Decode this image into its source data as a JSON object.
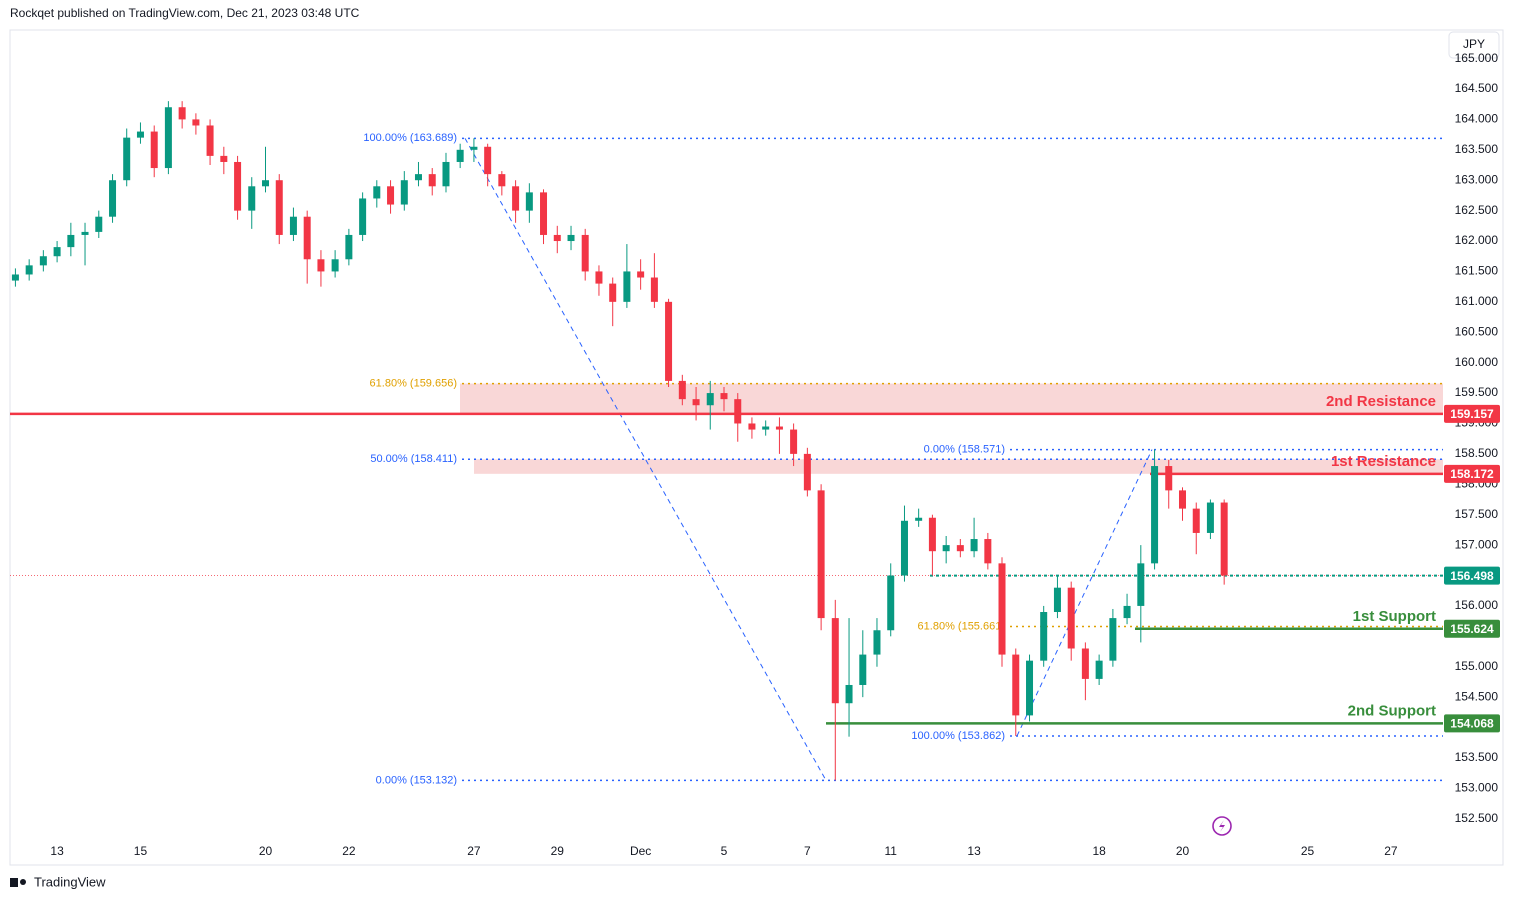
{
  "header": {
    "text": "Rockqet published on TradingView.com, Dec 21, 2023 03:48 UTC",
    "currency": "JPY",
    "brand": "TradingView"
  },
  "chart_data": {
    "type": "candlestick",
    "up_color": "#089981",
    "down_color": "#f23645",
    "x": [
      -1,
      -0.67,
      -0.33,
      0,
      0.33,
      0.67,
      1,
      1.33,
      1.67,
      2,
      2.33,
      2.67,
      3,
      3.33,
      3.67,
      4,
      4.33,
      4.67,
      5,
      5.33,
      5.67,
      6,
      6.33,
      6.67,
      7,
      7.33,
      7.67,
      8,
      8.33,
      8.67,
      9,
      9.33,
      9.67,
      10,
      10.33,
      10.67,
      11,
      11.33,
      11.67,
      12,
      12.33,
      12.67,
      13,
      13.33,
      13.67,
      14,
      14.33,
      14.67,
      15,
      15.33,
      15.67,
      16,
      16.33,
      16.67,
      17,
      17.33,
      17.67,
      18,
      18.33,
      18.67,
      19,
      19.33,
      19.67,
      20,
      20.33,
      20.67,
      21,
      21.33,
      21.67,
      22,
      22.33,
      22.67,
      23,
      23.33,
      23.67,
      24,
      24.33,
      24.67,
      25,
      25.33,
      25.67,
      26,
      26.33,
      26.67,
      27,
      27.33,
      27.67,
      28
    ],
    "open": [
      161.35,
      161.45,
      161.6,
      161.75,
      161.9,
      162.1,
      162.15,
      162.4,
      163.0,
      163.7,
      163.8,
      163.2,
      164.2,
      164.0,
      163.9,
      163.4,
      163.3,
      162.5,
      162.9,
      163.0,
      162.1,
      162.4,
      161.7,
      161.5,
      161.7,
      162.1,
      162.7,
      162.9,
      162.6,
      163.0,
      163.1,
      162.9,
      163.3,
      163.5,
      163.55,
      163.1,
      162.9,
      162.5,
      162.8,
      162.1,
      162.0,
      162.1,
      161.5,
      161.3,
      161.0,
      161.5,
      161.4,
      161.0,
      159.7,
      159.4,
      159.3,
      159.5,
      159.4,
      159.0,
      158.9,
      158.95,
      158.9,
      158.5,
      157.9,
      155.8,
      154.4,
      154.7,
      155.2,
      155.6,
      156.5,
      157.4,
      157.45,
      156.9,
      157.0,
      156.9,
      157.1,
      156.7,
      155.2,
      154.2,
      155.1,
      155.9,
      156.3,
      155.3,
      154.8,
      155.1,
      155.8,
      156.0,
      156.7,
      158.3,
      157.9,
      157.6,
      157.2,
      157.7
    ],
    "high": [
      161.55,
      161.7,
      161.85,
      162.0,
      162.3,
      162.3,
      162.5,
      163.1,
      163.85,
      163.95,
      163.9,
      164.3,
      164.3,
      164.1,
      164.0,
      163.55,
      163.4,
      163.05,
      163.55,
      163.1,
      162.55,
      162.5,
      161.85,
      161.85,
      162.2,
      162.8,
      163.0,
      163.0,
      163.15,
      163.3,
      163.2,
      163.45,
      163.6,
      163.689,
      163.6,
      163.15,
      163.0,
      162.95,
      162.85,
      162.25,
      162.25,
      162.2,
      161.6,
      161.4,
      161.95,
      161.7,
      161.8,
      161.05,
      159.8,
      159.6,
      159.7,
      159.6,
      159.5,
      159.1,
      159.05,
      159.1,
      159.0,
      158.6,
      158.0,
      156.1,
      155.8,
      155.6,
      155.8,
      156.7,
      157.65,
      157.6,
      157.5,
      157.15,
      157.1,
      157.45,
      157.2,
      156.8,
      155.3,
      155.2,
      156.0,
      156.5,
      156.4,
      155.4,
      155.2,
      155.95,
      156.2,
      157.0,
      158.571,
      158.4,
      157.95,
      157.7,
      157.75,
      157.75
    ],
    "low": [
      161.25,
      161.35,
      161.5,
      161.65,
      161.75,
      161.6,
      162.05,
      162.3,
      162.9,
      163.6,
      163.05,
      163.1,
      163.85,
      163.75,
      163.25,
      163.1,
      162.35,
      162.2,
      162.8,
      161.95,
      162.0,
      161.3,
      161.25,
      161.4,
      161.6,
      162.0,
      162.55,
      162.45,
      162.5,
      162.9,
      162.75,
      162.8,
      163.2,
      163.3,
      162.9,
      162.75,
      162.3,
      162.3,
      161.95,
      161.8,
      161.85,
      161.35,
      161.1,
      160.6,
      160.9,
      161.2,
      160.9,
      159.6,
      159.3,
      159.05,
      158.9,
      159.2,
      158.7,
      158.75,
      158.8,
      158.5,
      158.3,
      157.8,
      155.6,
      153.132,
      153.85,
      154.5,
      155.0,
      155.5,
      156.4,
      157.3,
      156.5,
      156.7,
      156.8,
      156.8,
      156.6,
      155.0,
      153.862,
      154.1,
      155.0,
      155.8,
      155.1,
      154.45,
      154.7,
      155.0,
      155.7,
      155.4,
      156.6,
      157.6,
      157.4,
      156.85,
      157.1,
      156.35
    ],
    "close": [
      161.45,
      161.6,
      161.75,
      161.9,
      162.1,
      162.15,
      162.4,
      163.0,
      163.7,
      163.8,
      163.2,
      164.2,
      164.0,
      163.9,
      163.4,
      163.3,
      162.5,
      162.9,
      163.0,
      162.1,
      162.4,
      161.7,
      161.5,
      161.7,
      162.1,
      162.7,
      162.9,
      162.6,
      163.0,
      163.1,
      162.9,
      163.3,
      163.5,
      163.55,
      163.1,
      162.9,
      162.5,
      162.8,
      162.1,
      162.0,
      162.1,
      161.5,
      161.3,
      161.0,
      161.5,
      161.4,
      161.0,
      159.7,
      159.4,
      159.3,
      159.5,
      159.4,
      159.0,
      158.9,
      158.95,
      158.9,
      158.5,
      157.9,
      155.8,
      154.4,
      154.7,
      155.2,
      155.6,
      156.5,
      157.4,
      157.45,
      156.9,
      157.0,
      156.9,
      157.1,
      156.7,
      155.2,
      154.2,
      155.1,
      155.9,
      156.3,
      155.3,
      154.8,
      155.1,
      155.8,
      156.0,
      156.7,
      158.3,
      157.9,
      157.6,
      157.2,
      157.7,
      156.5
    ],
    "xlim": [
      -1.13,
      33.25
    ],
    "ylim": [
      151.74,
      165.47
    ],
    "xticks": [
      {
        "value": 0,
        "label": "13"
      },
      {
        "value": 2,
        "label": "15"
      },
      {
        "value": 5,
        "label": "20"
      },
      {
        "value": 7,
        "label": "22"
      },
      {
        "value": 10,
        "label": "27"
      },
      {
        "value": 12,
        "label": "29"
      },
      {
        "value": 14,
        "label": "Dec"
      },
      {
        "value": 16,
        "label": "5"
      },
      {
        "value": 18,
        "label": "7"
      },
      {
        "value": 20,
        "label": "11"
      },
      {
        "value": 22,
        "label": "13"
      },
      {
        "value": 25,
        "label": "18"
      },
      {
        "value": 27,
        "label": "20"
      },
      {
        "value": 30,
        "label": "25"
      },
      {
        "value": 32,
        "label": "27"
      }
    ],
    "yticks": [
      {
        "value": 152.5,
        "label": "152.500"
      },
      {
        "value": 153,
        "label": "153.000"
      },
      {
        "value": 153.5,
        "label": "153.500"
      },
      {
        "value": 154.5,
        "label": "154.500"
      },
      {
        "value": 155,
        "label": "155.000"
      },
      {
        "value": 156,
        "label": "156.000"
      },
      {
        "value": 156.5,
        "label": "156.500"
      },
      {
        "value": 157,
        "label": "157.000"
      },
      {
        "value": 157.5,
        "label": "157.500"
      },
      {
        "value": 158,
        "label": "158.000"
      },
      {
        "value": 158.5,
        "label": "158.500"
      },
      {
        "value": 159,
        "label": "159.000"
      },
      {
        "value": 159.5,
        "label": "159.500"
      },
      {
        "value": 160,
        "label": "160.000"
      },
      {
        "value": 160.5,
        "label": "160.500"
      },
      {
        "value": 161,
        "label": "161.000"
      },
      {
        "value": 161.5,
        "label": "161.500"
      },
      {
        "value": 162,
        "label": "162.000"
      },
      {
        "value": 162.5,
        "label": "162.500"
      },
      {
        "value": 163,
        "label": "163.000"
      },
      {
        "value": 163.5,
        "label": "163.500"
      },
      {
        "value": 164,
        "label": "164.000"
      },
      {
        "value": 164.5,
        "label": "164.500"
      },
      {
        "value": 165,
        "label": "165.000"
      }
    ],
    "current_price": {
      "value": 156.498,
      "color": "#089981"
    },
    "levels": [
      {
        "label": "2nd Resistance",
        "value": 159.157,
        "color": "#f23645"
      },
      {
        "label": "1st Resistance",
        "value": 158.172,
        "color": "#f23645"
      },
      {
        "label": "1st Support",
        "value": 155.624,
        "color": "#388e3c"
      },
      {
        "label": "2nd Support",
        "value": 154.068,
        "color": "#388e3c"
      }
    ],
    "fibs": [
      {
        "levels": [
          {
            "label": "100.00% (163.689)",
            "value": 163.689,
            "color": "#2962ff"
          },
          {
            "label": "61.80% (159.656)",
            "value": 159.656,
            "color": "#e0a000"
          },
          {
            "label": "50.00% (158.411)",
            "value": 158.411,
            "color": "#2962ff"
          },
          {
            "label": "0.00% (153.132)",
            "value": 153.132,
            "color": "#2962ff"
          }
        ]
      },
      {
        "levels": [
          {
            "label": "0.00% (158.571)",
            "value": 158.571,
            "color": "#2962ff"
          },
          {
            "label": "61.80% (155.661)",
            "value": 155.661,
            "color": "#e0a000"
          },
          {
            "label": "100.00% (153.862)",
            "value": 153.862,
            "color": "#2962ff"
          }
        ]
      }
    ]
  }
}
